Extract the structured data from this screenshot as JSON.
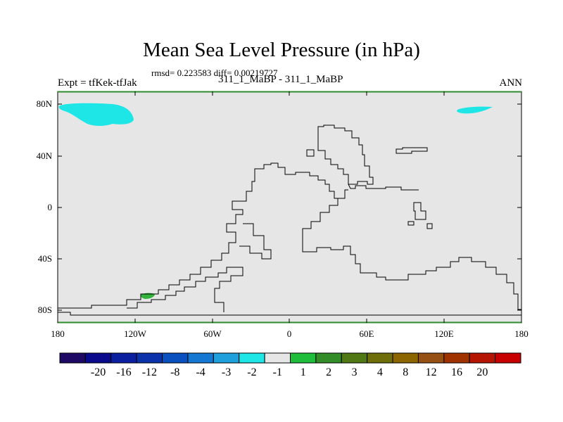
{
  "title": "Mean Sea Level Pressure (in hPa)",
  "stats": "rmsd= 0.223583 diff= 0.00219727",
  "expt": "Expt = tfKek-tfJak",
  "case": "311_1_MaBP - 311_1_MaBP",
  "season": "ANN",
  "lat_ticks": [
    "80N",
    "40N",
    "0",
    "40S",
    "80S"
  ],
  "lon_ticks": [
    "180",
    "120W",
    "60W",
    "0",
    "60E",
    "120E",
    "180"
  ],
  "colorbar": {
    "colors": [
      "#1e0a64",
      "#0a0a8c",
      "#0a1ea0",
      "#0a32aa",
      "#0a50be",
      "#1478d2",
      "#1ea0dc",
      "#1ee6e6",
      "#e6e6e6",
      "#1ebe3c",
      "#328c28",
      "#507814",
      "#6e6e0a",
      "#8c6400",
      "#965014",
      "#a03200",
      "#b41400",
      "#c80000"
    ],
    "labels": [
      "-20",
      "-16",
      "-12",
      "-8",
      "-4",
      "-3",
      "-2",
      "-1",
      "1",
      "2",
      "3",
      "4",
      "8",
      "12",
      "16",
      "20"
    ]
  },
  "map": {
    "background": "#e6e6e6",
    "shading": [
      {
        "name": "cyan-blob-northwest",
        "color": "#1ee6e6"
      },
      {
        "name": "cyan-blob-northeast",
        "color": "#1ee6e6"
      },
      {
        "name": "green-blob-south",
        "color": "#32b43c"
      }
    ]
  }
}
